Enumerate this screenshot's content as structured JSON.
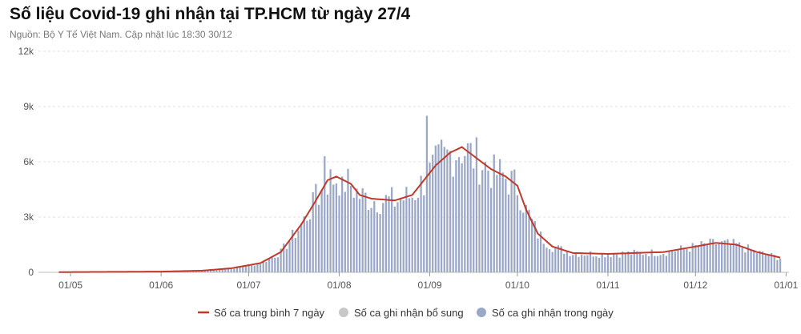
{
  "chart_data": {
    "type": "bar",
    "title": "Số liệu Covid-19 ghi nhận tại TP.HCM từ ngày 27/4",
    "subtitle": "Nguồn: Bộ Y Tế Việt Nam. Cập nhật lúc 18:30 30/12",
    "y_ticks": [
      "0",
      "3k",
      "6k",
      "9k",
      "12k"
    ],
    "ylim": [
      0,
      12000
    ],
    "x_ticks": [
      "01/05",
      "01/06",
      "01/07",
      "01/08",
      "01/09",
      "01/10",
      "01/11",
      "01/12",
      "01/01"
    ],
    "x_range": [
      "2021-04-27",
      "2021-12-30"
    ],
    "grid": true,
    "legend_position": "bottom",
    "colors": {
      "average_line": "#c0392b",
      "supplementary": "#c8c8c8",
      "daily_cases": "#9aa7c7"
    },
    "series": [
      {
        "name": "Số ca trung bình 7 ngày",
        "type": "line",
        "points": [
          [
            "2021-04-27",
            10
          ],
          [
            "2021-06-01",
            40
          ],
          [
            "2021-06-15",
            90
          ],
          [
            "2021-06-25",
            220
          ],
          [
            "2021-07-05",
            500
          ],
          [
            "2021-07-12",
            1100
          ],
          [
            "2021-07-19",
            2600
          ],
          [
            "2021-07-24",
            3900
          ],
          [
            "2021-07-28",
            5000
          ],
          [
            "2021-07-31",
            5200
          ],
          [
            "2021-08-05",
            4800
          ],
          [
            "2021-08-08",
            4200
          ],
          [
            "2021-08-12",
            4000
          ],
          [
            "2021-08-20",
            3900
          ],
          [
            "2021-08-26",
            4200
          ],
          [
            "2021-08-30",
            5000
          ],
          [
            "2021-09-03",
            5800
          ],
          [
            "2021-09-08",
            6500
          ],
          [
            "2021-09-12",
            6800
          ],
          [
            "2021-09-17",
            6200
          ],
          [
            "2021-09-22",
            5600
          ],
          [
            "2021-09-27",
            5200
          ],
          [
            "2021-10-01",
            4700
          ],
          [
            "2021-10-04",
            3400
          ],
          [
            "2021-10-08",
            2100
          ],
          [
            "2021-10-13",
            1400
          ],
          [
            "2021-10-20",
            1050
          ],
          [
            "2021-11-01",
            1000
          ],
          [
            "2021-11-20",
            1100
          ],
          [
            "2021-12-01",
            1400
          ],
          [
            "2021-12-08",
            1600
          ],
          [
            "2021-12-15",
            1500
          ],
          [
            "2021-12-22",
            1100
          ],
          [
            "2021-12-30",
            800
          ]
        ]
      },
      {
        "name": "Số ca ghi nhận bổ sung",
        "type": "bar",
        "values": []
      },
      {
        "name": "Số ca ghi nhận trong ngày",
        "type": "bar",
        "points": [
          [
            "2021-04-27",
            5
          ],
          [
            "2021-06-01",
            40
          ],
          [
            "2021-06-15",
            90
          ],
          [
            "2021-06-25",
            220
          ],
          [
            "2021-07-05",
            500
          ],
          [
            "2021-07-12",
            1100
          ],
          [
            "2021-07-19",
            2600
          ],
          [
            "2021-07-24",
            3900
          ],
          [
            "2021-07-28",
            5000
          ],
          [
            "2021-07-31",
            5200
          ],
          [
            "2021-08-05",
            4800
          ],
          [
            "2021-08-08",
            4200
          ],
          [
            "2021-08-12",
            4000
          ],
          [
            "2021-08-20",
            3900
          ],
          [
            "2021-08-26",
            4200
          ],
          [
            "2021-08-30",
            5000
          ],
          [
            "2021-09-03",
            5800
          ],
          [
            "2021-09-08",
            6500
          ],
          [
            "2021-09-12",
            6800
          ],
          [
            "2021-09-17",
            6200
          ],
          [
            "2021-09-22",
            5600
          ],
          [
            "2021-09-27",
            5200
          ],
          [
            "2021-10-01",
            4700
          ],
          [
            "2021-10-04",
            3400
          ],
          [
            "2021-10-08",
            2100
          ],
          [
            "2021-10-13",
            1400
          ],
          [
            "2021-10-20",
            1050
          ],
          [
            "2021-11-01",
            1000
          ],
          [
            "2021-11-20",
            1100
          ],
          [
            "2021-12-01",
            1400
          ],
          [
            "2021-12-08",
            1600
          ],
          [
            "2021-12-15",
            1500
          ],
          [
            "2021-12-22",
            1100
          ],
          [
            "2021-12-30",
            800
          ]
        ],
        "spikes": [
          [
            "2021-07-24",
            4800
          ],
          [
            "2021-07-27",
            6300
          ],
          [
            "2021-08-02",
            5200
          ],
          [
            "2021-08-31",
            8500
          ],
          [
            "2021-09-05",
            7200
          ],
          [
            "2021-09-23",
            6400
          ],
          [
            "2021-10-05",
            3400
          ]
        ]
      }
    ]
  }
}
